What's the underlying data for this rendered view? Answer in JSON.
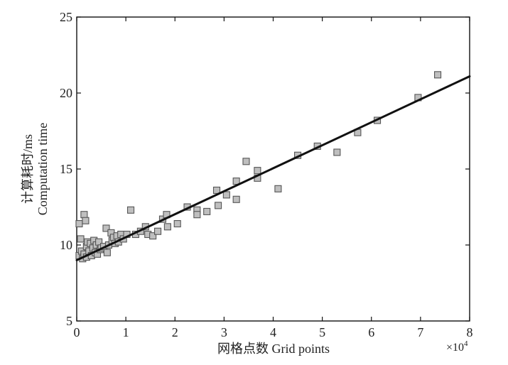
{
  "chart_data": {
    "type": "scatter",
    "title": "",
    "xlabel": "网格点数 Grid points",
    "ylabel_cn": "计算耗时/ms",
    "ylabel_en": "Computation time",
    "x_multiplier": "×10",
    "x_multiplier_exp": "4",
    "xlim": [
      0,
      8
    ],
    "ylim": [
      5,
      25
    ],
    "x_ticks": [
      "0",
      "1",
      "2",
      "3",
      "4",
      "5",
      "6",
      "7",
      "8"
    ],
    "y_ticks": [
      "5",
      "10",
      "15",
      "20",
      "25"
    ],
    "grid": false,
    "legend": "none",
    "marker_color": "#bfbfbf",
    "marker_edge": "#555555",
    "line_color": "#111111",
    "fit_line": {
      "x": [
        0,
        8
      ],
      "y": [
        9.0,
        21.1
      ]
    },
    "points": [
      {
        "x": 0.05,
        "y": 11.4
      },
      {
        "x": 0.05,
        "y": 9.3
      },
      {
        "x": 0.08,
        "y": 10.4
      },
      {
        "x": 0.1,
        "y": 9.6
      },
      {
        "x": 0.12,
        "y": 9.1
      },
      {
        "x": 0.15,
        "y": 12.0
      },
      {
        "x": 0.15,
        "y": 9.4
      },
      {
        "x": 0.18,
        "y": 11.6
      },
      {
        "x": 0.2,
        "y": 9.9
      },
      {
        "x": 0.2,
        "y": 9.2
      },
      {
        "x": 0.22,
        "y": 10.2
      },
      {
        "x": 0.25,
        "y": 9.6
      },
      {
        "x": 0.28,
        "y": 10.1
      },
      {
        "x": 0.3,
        "y": 9.3
      },
      {
        "x": 0.33,
        "y": 9.8
      },
      {
        "x": 0.35,
        "y": 10.3
      },
      {
        "x": 0.38,
        "y": 9.5
      },
      {
        "x": 0.4,
        "y": 10.0
      },
      {
        "x": 0.42,
        "y": 9.4
      },
      {
        "x": 0.45,
        "y": 10.2
      },
      {
        "x": 0.48,
        "y": 9.7
      },
      {
        "x": 0.5,
        "y": 9.8
      },
      {
        "x": 0.55,
        "y": 9.9
      },
      {
        "x": 0.6,
        "y": 11.1
      },
      {
        "x": 0.62,
        "y": 9.5
      },
      {
        "x": 0.65,
        "y": 10.0
      },
      {
        "x": 0.7,
        "y": 10.8
      },
      {
        "x": 0.72,
        "y": 10.3
      },
      {
        "x": 0.75,
        "y": 10.5
      },
      {
        "x": 0.78,
        "y": 10.1
      },
      {
        "x": 0.82,
        "y": 10.6
      },
      {
        "x": 0.85,
        "y": 10.2
      },
      {
        "x": 0.9,
        "y": 10.7
      },
      {
        "x": 0.95,
        "y": 10.4
      },
      {
        "x": 1.02,
        "y": 10.7
      },
      {
        "x": 1.1,
        "y": 12.3
      },
      {
        "x": 1.2,
        "y": 10.7
      },
      {
        "x": 1.3,
        "y": 10.9
      },
      {
        "x": 1.4,
        "y": 11.2
      },
      {
        "x": 1.45,
        "y": 10.7
      },
      {
        "x": 1.55,
        "y": 10.6
      },
      {
        "x": 1.65,
        "y": 10.9
      },
      {
        "x": 1.75,
        "y": 11.7
      },
      {
        "x": 1.83,
        "y": 12.0
      },
      {
        "x": 1.85,
        "y": 11.2
      },
      {
        "x": 2.05,
        "y": 11.4
      },
      {
        "x": 2.25,
        "y": 12.5
      },
      {
        "x": 2.45,
        "y": 12.3
      },
      {
        "x": 2.45,
        "y": 12.0
      },
      {
        "x": 2.65,
        "y": 12.2
      },
      {
        "x": 2.85,
        "y": 13.6
      },
      {
        "x": 2.88,
        "y": 12.6
      },
      {
        "x": 3.05,
        "y": 13.3
      },
      {
        "x": 3.25,
        "y": 14.2
      },
      {
        "x": 3.25,
        "y": 13.0
      },
      {
        "x": 3.45,
        "y": 15.5
      },
      {
        "x": 3.68,
        "y": 14.9
      },
      {
        "x": 3.68,
        "y": 14.4
      },
      {
        "x": 4.1,
        "y": 13.7
      },
      {
        "x": 4.5,
        "y": 15.9
      },
      {
        "x": 4.9,
        "y": 16.5
      },
      {
        "x": 5.3,
        "y": 16.1
      },
      {
        "x": 5.72,
        "y": 17.4
      },
      {
        "x": 6.12,
        "y": 18.2
      },
      {
        "x": 6.95,
        "y": 19.7
      },
      {
        "x": 7.35,
        "y": 21.2
      }
    ]
  }
}
